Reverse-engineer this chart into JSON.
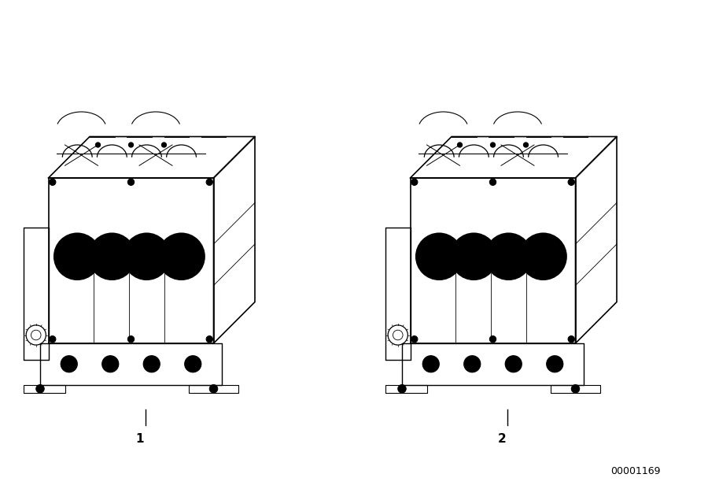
{
  "background_color": "#ffffff",
  "label1": "1",
  "label2": "2",
  "part_number": "00001169",
  "label_fontsize": 11,
  "part_number_fontsize": 9,
  "line_color": "#000000",
  "line_width": 1.0,
  "fig_width": 9.0,
  "fig_height": 6.35,
  "dpi": 100
}
